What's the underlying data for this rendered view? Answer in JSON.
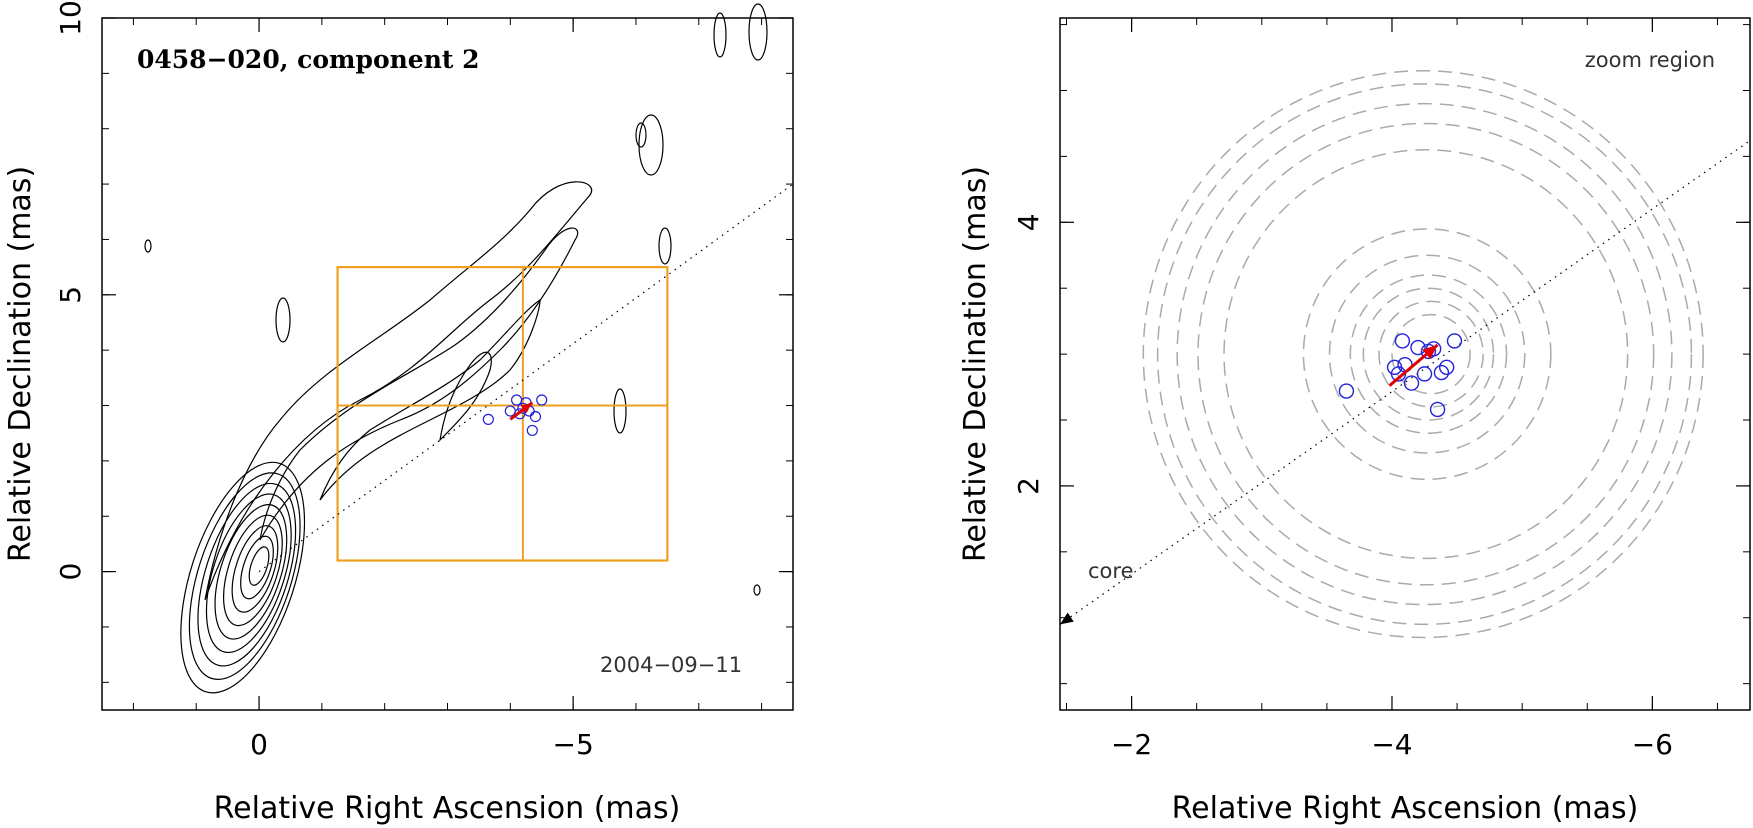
{
  "chart_data": [
    {
      "type": "scatter",
      "panel": "left",
      "title": "0458−020, component 2",
      "date_label": "2004−09−11",
      "xlabel": "Relative Right Ascension (mas)",
      "ylabel": "Relative Declination (mas)",
      "xlim": [
        2.5,
        -8.5
      ],
      "ylim": [
        -2.5,
        10
      ],
      "xticks": [
        0,
        -5
      ],
      "xtick_labels": [
        "0",
        "−5"
      ],
      "yticks": [
        0,
        5,
        10
      ],
      "ytick_labels": [
        "0",
        "5",
        "10"
      ],
      "zoom_box": {
        "x_range": [
          -1.25,
          -6.5
        ],
        "y_range": [
          0.2,
          5.5
        ],
        "cross": [
          -4.2,
          3.0
        ]
      },
      "trajectory_line": {
        "from": [
          0,
          0
        ],
        "to": [
          -8.5,
          7.0
        ]
      },
      "components": [
        {
          "x": -3.65,
          "y": 2.75
        },
        {
          "x": -4.0,
          "y": 2.9
        },
        {
          "x": -4.1,
          "y": 3.1
        },
        {
          "x": -4.2,
          "y": 2.95
        },
        {
          "x": -4.25,
          "y": 3.05
        },
        {
          "x": -4.4,
          "y": 2.8
        },
        {
          "x": -4.35,
          "y": 2.55
        },
        {
          "x": -4.5,
          "y": 3.1
        },
        {
          "x": -4.15,
          "y": 2.85
        },
        {
          "x": -4.3,
          "y": 2.9
        }
      ],
      "velocity_arrow": {
        "from": [
          -4.0,
          2.75
        ],
        "to": [
          -4.35,
          3.05
        ]
      }
    },
    {
      "type": "scatter",
      "panel": "right",
      "annotation": "zoom region",
      "core_label": "core",
      "xlabel": "Relative Right Ascension (mas)",
      "ylabel": "Relative Declination (mas)",
      "xlim": [
        -1.45,
        -6.75
      ],
      "ylim": [
        0.3,
        5.55
      ],
      "xticks": [
        -2,
        -4,
        -6
      ],
      "xtick_labels": [
        "−2",
        "−4",
        "−6"
      ],
      "yticks": [
        2,
        4
      ],
      "ytick_labels": [
        "2",
        "4"
      ],
      "trajectory_line": {
        "from": [
          -1.45,
          0.95
        ],
        "to": [
          -6.75,
          4.62
        ]
      },
      "components": [
        {
          "x": -3.65,
          "y": 2.72
        },
        {
          "x": -4.05,
          "y": 2.85
        },
        {
          "x": -4.1,
          "y": 2.92
        },
        {
          "x": -4.08,
          "y": 3.1
        },
        {
          "x": -4.2,
          "y": 3.05
        },
        {
          "x": -4.15,
          "y": 2.78
        },
        {
          "x": -4.25,
          "y": 2.85
        },
        {
          "x": -4.28,
          "y": 3.02
        },
        {
          "x": -4.32,
          "y": 3.04
        },
        {
          "x": -4.35,
          "y": 2.58
        },
        {
          "x": -4.38,
          "y": 2.86
        },
        {
          "x": -4.42,
          "y": 2.9
        },
        {
          "x": -4.48,
          "y": 3.1
        },
        {
          "x": -4.02,
          "y": 2.9
        }
      ],
      "uncertainty_circles": [
        {
          "x": -4.3,
          "y": 3.0,
          "r": 0.3
        },
        {
          "x": -4.3,
          "y": 3.0,
          "r": 0.4
        },
        {
          "x": -4.28,
          "y": 3.0,
          "r": 0.5
        },
        {
          "x": -4.28,
          "y": 3.0,
          "r": 0.6
        },
        {
          "x": -4.27,
          "y": 3.0,
          "r": 0.75
        },
        {
          "x": -4.27,
          "y": 3.0,
          "r": 0.95
        },
        {
          "x": -4.26,
          "y": 3.0,
          "r": 1.55
        },
        {
          "x": -4.26,
          "y": 3.0,
          "r": 1.75
        },
        {
          "x": -4.25,
          "y": 3.0,
          "r": 1.9
        },
        {
          "x": -4.25,
          "y": 3.0,
          "r": 2.05
        },
        {
          "x": -4.24,
          "y": 3.0,
          "r": 2.15
        }
      ],
      "velocity_arrow": {
        "from": [
          -3.98,
          2.76
        ],
        "to": [
          -4.35,
          3.07
        ]
      },
      "core_arrow": {
        "from": [
          -1.75,
          1.15
        ],
        "to": [
          -1.45,
          0.95
        ]
      }
    }
  ]
}
